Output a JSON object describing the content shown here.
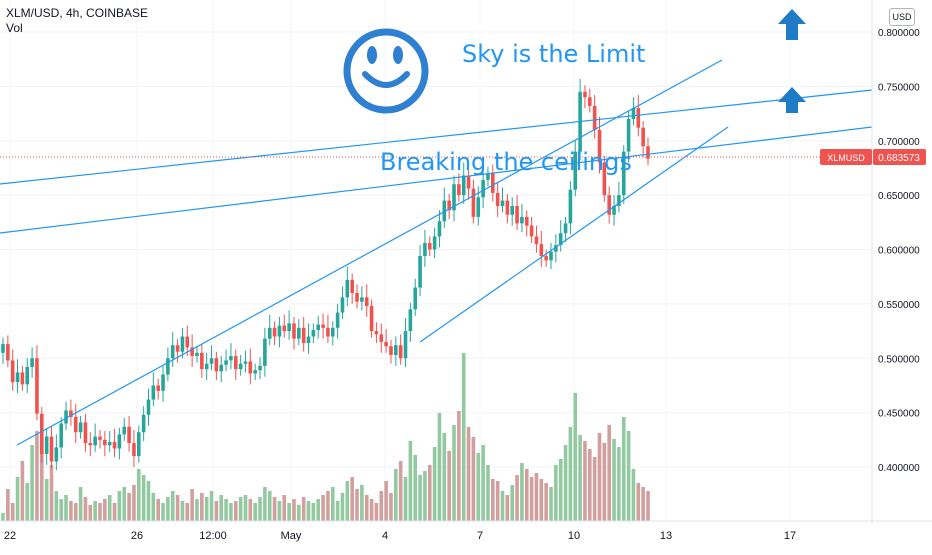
{
  "header": {
    "symbol_line": "XLM/USD, 4h, COINBASE",
    "volume_label": "Vol",
    "currency_button": "USD"
  },
  "price_label": {
    "text": "XLMUSD",
    "value": "0.683573",
    "color": "#ef5350"
  },
  "annotations": {
    "sky": "Sky is the Limit",
    "breaking": "Breaking the ceilings",
    "smiley": "smiley-face-icon",
    "arrows": [
      "arrow-up-icon",
      "arrow-up-icon"
    ]
  },
  "colors": {
    "up": "#26a69a",
    "down": "#ef5350",
    "vol_up": "#93c9a0",
    "vol_down": "#d1a09e",
    "line": "#2196f3",
    "arrow": "#1e7bc6"
  },
  "chart_data": {
    "type": "candlestick",
    "title": "",
    "xlabel": "",
    "ylabel": "",
    "ylim": [
      0.34,
      0.81
    ],
    "y_ticks": [
      "0.800000",
      "0.750000",
      "0.700000",
      "0.650000",
      "0.600000",
      "0.550000",
      "0.500000",
      "0.450000",
      "0.400000"
    ],
    "y_tick_values": [
      0.8,
      0.75,
      0.7,
      0.65,
      0.6,
      0.55,
      0.5,
      0.45,
      0.4
    ],
    "x_ticks": [
      "22",
      "26",
      "12:00",
      "May",
      "4",
      "7",
      "10",
      "13",
      "17"
    ],
    "last_price": 0.683573,
    "candles_close": [
      0.513,
      0.498,
      0.478,
      0.487,
      0.476,
      0.492,
      0.5,
      0.449,
      0.412,
      0.428,
      0.405,
      0.418,
      0.44,
      0.452,
      0.446,
      0.432,
      0.441,
      0.422,
      0.42,
      0.428,
      0.425,
      0.42,
      0.423,
      0.417,
      0.43,
      0.437,
      0.422,
      0.41,
      0.432,
      0.448,
      0.462,
      0.475,
      0.47,
      0.485,
      0.5,
      0.512,
      0.506,
      0.52,
      0.51,
      0.502,
      0.505,
      0.49,
      0.495,
      0.5,
      0.488,
      0.494,
      0.498,
      0.502,
      0.49,
      0.495,
      0.497,
      0.486,
      0.489,
      0.493,
      0.518,
      0.528,
      0.52,
      0.53,
      0.525,
      0.532,
      0.518,
      0.528,
      0.514,
      0.52,
      0.526,
      0.531,
      0.528,
      0.52,
      0.528,
      0.542,
      0.556,
      0.572,
      0.56,
      0.552,
      0.556,
      0.548,
      0.525,
      0.522,
      0.515,
      0.511,
      0.503,
      0.512,
      0.5,
      0.525,
      0.545,
      0.565,
      0.594,
      0.606,
      0.6,
      0.612,
      0.626,
      0.645,
      0.636,
      0.66,
      0.65,
      0.668,
      0.656,
      0.63,
      0.648,
      0.664,
      0.67,
      0.652,
      0.64,
      0.645,
      0.632,
      0.64,
      0.624,
      0.63,
      0.622,
      0.612,
      0.605,
      0.594,
      0.59,
      0.598,
      0.604,
      0.615,
      0.624,
      0.655,
      0.69,
      0.745,
      0.74,
      0.732,
      0.71,
      0.68,
      0.65,
      0.632,
      0.64,
      0.65,
      0.69,
      0.72,
      0.73,
      0.712,
      0.695,
      0.683573
    ],
    "volume_heights": [
      8,
      32,
      18,
      44,
      60,
      38,
      76,
      90,
      68,
      42,
      56,
      30,
      22,
      26,
      20,
      18,
      34,
      24,
      16,
      20,
      18,
      22,
      26,
      18,
      30,
      34,
      28,
      36,
      52,
      46,
      40,
      28,
      22,
      18,
      24,
      30,
      26,
      20,
      18,
      32,
      22,
      28,
      24,
      30,
      20,
      26,
      22,
      18,
      20,
      24,
      26,
      22,
      18,
      24,
      34,
      30,
      24,
      20,
      26,
      18,
      22,
      16,
      24,
      20,
      18,
      22,
      26,
      30,
      34,
      20,
      28,
      40,
      44,
      32,
      36,
      26,
      22,
      18,
      30,
      40,
      28,
      52,
      60,
      44,
      80,
      66,
      46,
      50,
      56,
      74,
      108,
      88,
      70,
      96,
      110,
      168,
      94,
      84,
      68,
      76,
      56,
      42,
      40,
      30,
      26,
      36,
      46,
      58,
      52,
      44,
      48,
      42,
      38,
      34,
      56,
      62,
      76,
      94,
      128,
      86,
      80,
      72,
      64,
      88,
      78,
      96,
      82,
      74,
      104,
      90,
      52,
      38,
      34,
      30
    ]
  }
}
